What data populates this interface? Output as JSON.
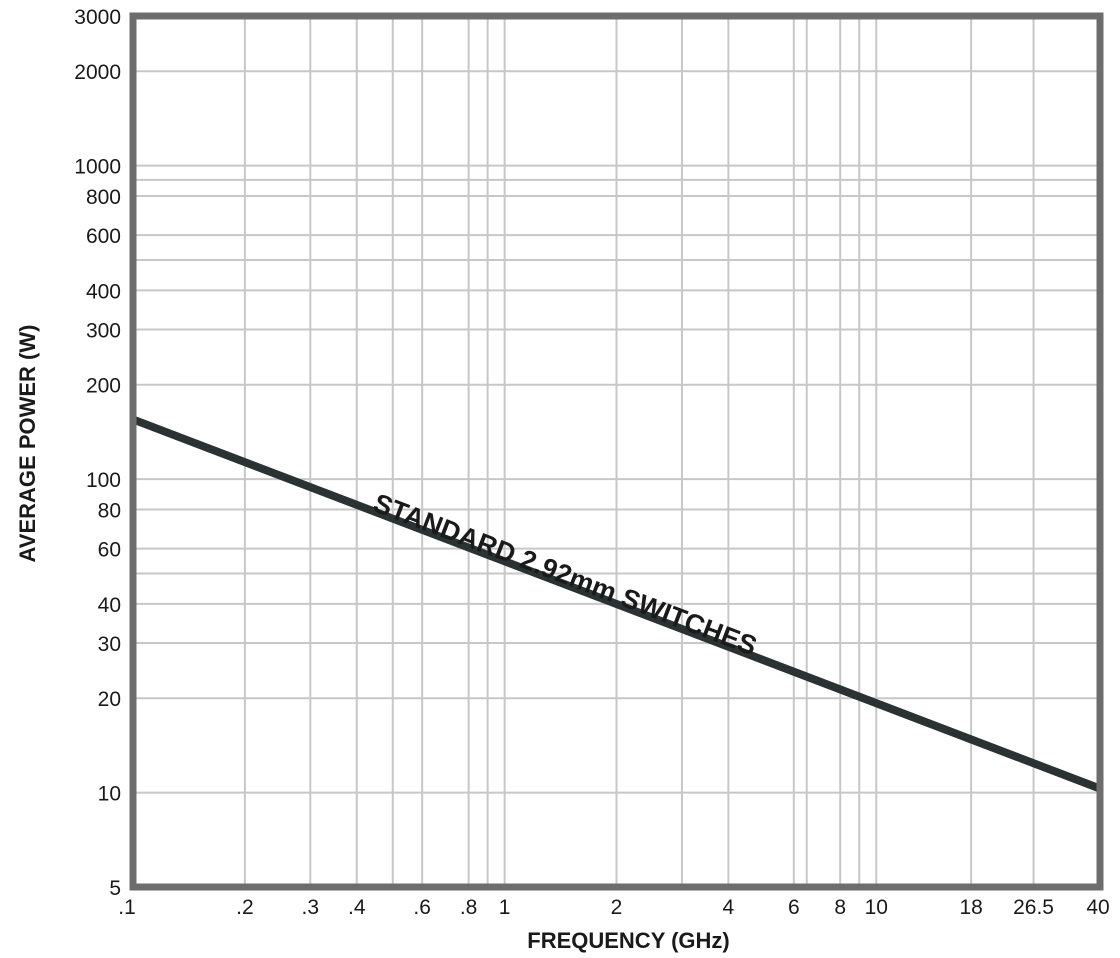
{
  "chart_data": {
    "type": "line",
    "title": "",
    "xlabel": "FREQUENCY (GHz)",
    "ylabel": "AVERAGE POWER (W)",
    "x_scale": "log",
    "y_scale": "log",
    "xlim": [
      0.1,
      40
    ],
    "ylim": [
      5,
      3000
    ],
    "grid": true,
    "x_ticks": [
      {
        "value": 0.1,
        "label": ".1"
      },
      {
        "value": 0.2,
        "label": ".2"
      },
      {
        "value": 0.3,
        "label": ".3"
      },
      {
        "value": 0.4,
        "label": ".4"
      },
      {
        "value": 0.6,
        "label": ".6"
      },
      {
        "value": 0.8,
        "label": ".8"
      },
      {
        "value": 1,
        "label": "1"
      },
      {
        "value": 2,
        "label": "2"
      },
      {
        "value": 4,
        "label": "4"
      },
      {
        "value": 6,
        "label": "6"
      },
      {
        "value": 8,
        "label": "8"
      },
      {
        "value": 10,
        "label": "10"
      },
      {
        "value": 18,
        "label": "18"
      },
      {
        "value": 26.5,
        "label": "26.5"
      },
      {
        "value": 40,
        "label": "40"
      }
    ],
    "y_ticks": [
      {
        "value": 5,
        "label": "5"
      },
      {
        "value": 10,
        "label": "10"
      },
      {
        "value": 20,
        "label": "20"
      },
      {
        "value": 30,
        "label": "30"
      },
      {
        "value": 40,
        "label": "40"
      },
      {
        "value": 60,
        "label": "60"
      },
      {
        "value": 80,
        "label": "80"
      },
      {
        "value": 100,
        "label": "100"
      },
      {
        "value": 200,
        "label": "200"
      },
      {
        "value": 300,
        "label": "300"
      },
      {
        "value": 400,
        "label": "400"
      },
      {
        "value": 600,
        "label": "600"
      },
      {
        "value": 800,
        "label": "800"
      },
      {
        "value": 1000,
        "label": "1000"
      },
      {
        "value": 2000,
        "label": "2000"
      },
      {
        "value": 3000,
        "label": "3000"
      }
    ],
    "x_gridlines": [
      0.1,
      0.2,
      0.3,
      0.4,
      0.5,
      0.6,
      0.8,
      0.9,
      1,
      2,
      3,
      4,
      6,
      6.5,
      8,
      9,
      10,
      18,
      26.5,
      40
    ],
    "y_gridlines": [
      5,
      10,
      20,
      30,
      40,
      50,
      60,
      80,
      100,
      200,
      300,
      400,
      500,
      600,
      800,
      900,
      1000,
      2000,
      3000
    ],
    "series": [
      {
        "name": "STANDARD 2.92mm SWITCHES",
        "color": "#2a3234",
        "x": [
          0.1,
          40
        ],
        "y": [
          155,
          10.3
        ]
      }
    ],
    "annotations": [
      {
        "text": "STANDARD 2.92mm SWITCHES"
      }
    ],
    "colors": {
      "frame": "#6d6d6d",
      "grid": "#c7c7c7",
      "line": "#2a3234",
      "text": "#1a1a1a"
    }
  }
}
